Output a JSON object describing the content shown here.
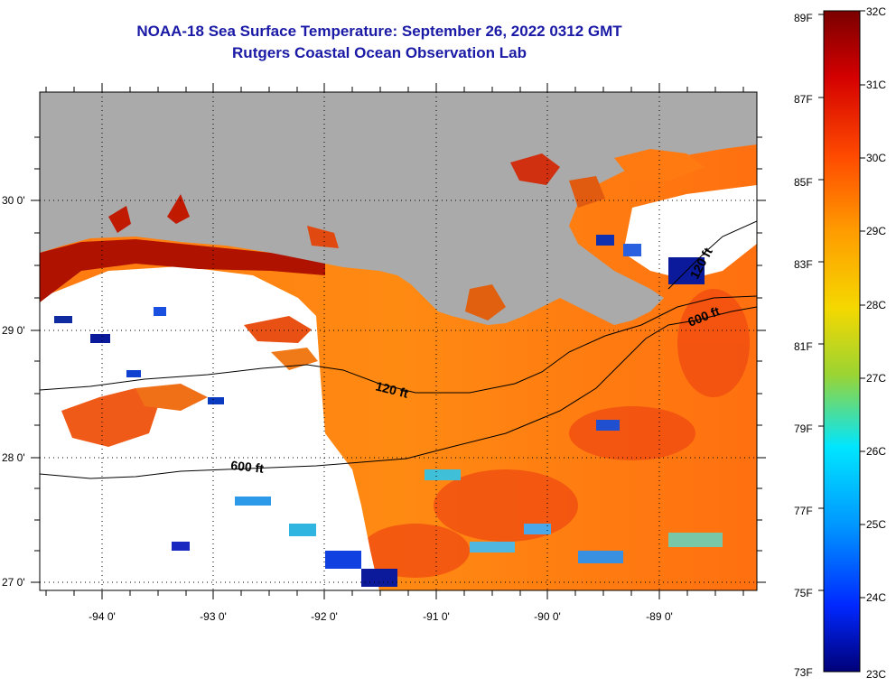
{
  "title": "NOAA-18 Sea Surface Temperature:  September 26, 2022 0312 GMT",
  "subtitle": "Rutgers Coastal Ocean Observation Lab",
  "map": {
    "lat_labels": [
      "30 0'",
      "29 0'",
      "28 0'",
      "27 0'"
    ],
    "lon_labels": [
      "-94 0'",
      "-93 0'",
      "-92 0'",
      "-91 0'",
      "-90 0'",
      "-89 0'"
    ],
    "contours": [
      "120 ft",
      "600 ft",
      "600 ft",
      "120 ft"
    ],
    "colors": {
      "land": "#aaaaaa",
      "cloud": "#ffffff",
      "title": "#1a1aa6"
    }
  },
  "colorbar": {
    "f_labels": [
      "89F",
      "87F",
      "85F",
      "83F",
      "81F",
      "79F",
      "77F",
      "75F",
      "73F"
    ],
    "c_labels": [
      "32C",
      "31C",
      "30C",
      "29C",
      "28C",
      "27C",
      "26C",
      "25C",
      "24C",
      "23C"
    ]
  }
}
